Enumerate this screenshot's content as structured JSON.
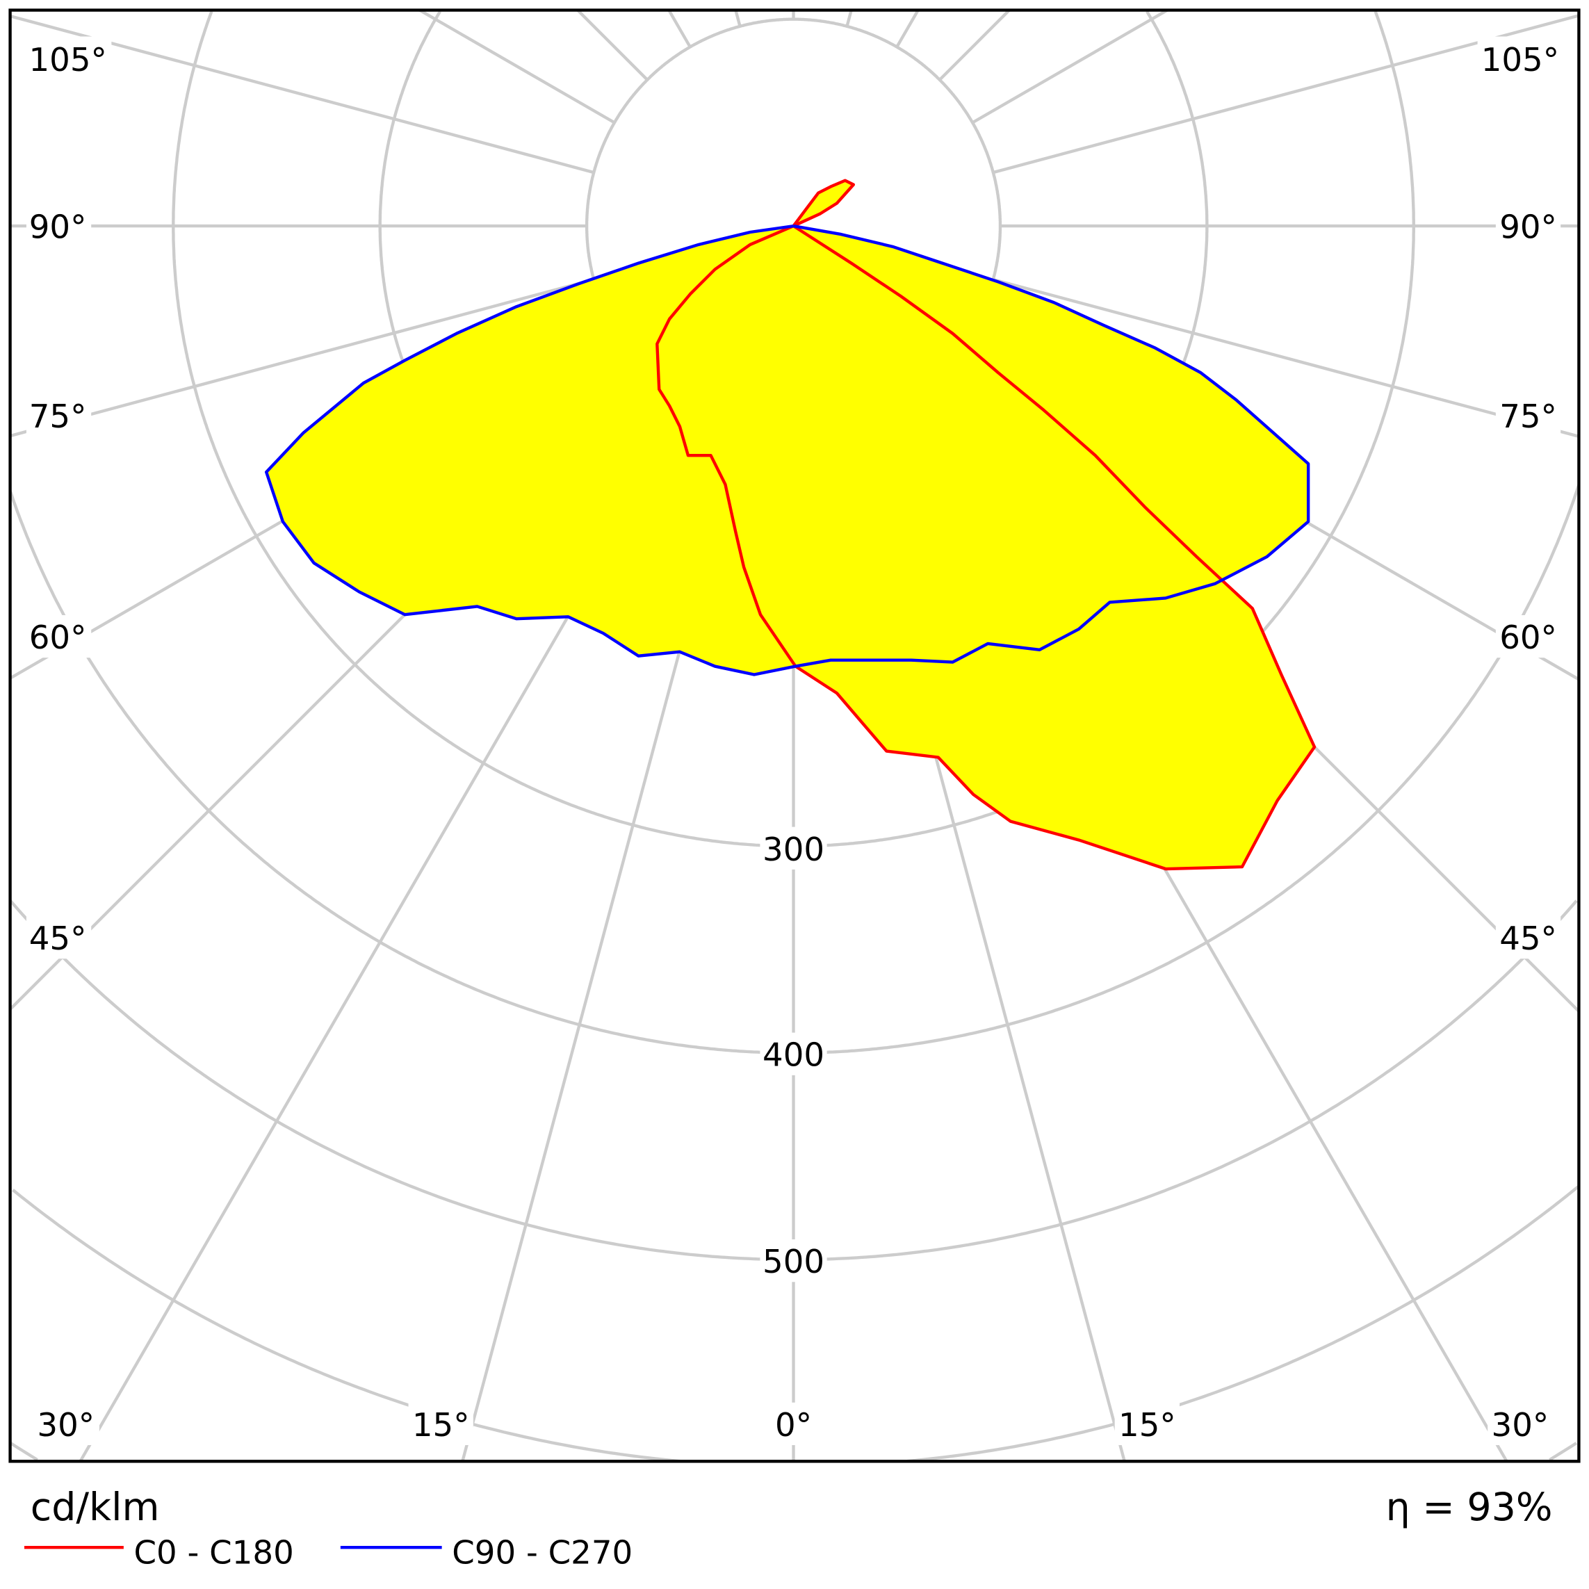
{
  "chart_data": {
    "type": "polar",
    "unit_label": "cd/klm",
    "efficiency_label": "η = 93%",
    "radial_ticks": [
      100,
      200,
      300,
      400,
      500,
      600,
      700,
      800
    ],
    "radial_tick_labels": [
      "300",
      "400",
      "500"
    ],
    "angle_step_deg": 15,
    "angle_labels": {
      "left_105": "105°",
      "right_105": "105°",
      "left_90": "90°",
      "right_90": "90°",
      "left_75": "75°",
      "right_75": "75°",
      "left_60": "60°",
      "right_60": "60°",
      "left_45": "45°",
      "right_45": "45°",
      "left_30": "30°",
      "right_30": "30°",
      "left_15": "15°",
      "right_15": "15°",
      "zero": "0°"
    },
    "grid": true,
    "fill_color": "#ffff00",
    "grid_color": "#cccccc",
    "point_format": "[horizontal, downward] intensity components in cd/klm",
    "series": [
      {
        "name": "C0 - C180",
        "color": "#ff0000",
        "points": [
          [
            0,
            0
          ],
          [
            28,
            18
          ],
          [
            52,
            34
          ],
          [
            77,
            52
          ],
          [
            99,
            71
          ],
          [
            121,
            89
          ],
          [
            146,
            111
          ],
          [
            170,
            136
          ],
          [
            195,
            160
          ],
          [
            222,
            185
          ],
          [
            236,
            217
          ],
          [
            252,
            252
          ],
          [
            234,
            278
          ],
          [
            217,
            310
          ],
          [
            180,
            311
          ],
          [
            138,
            297
          ],
          [
            105,
            288
          ],
          [
            87,
            275
          ],
          [
            70,
            257
          ],
          [
            45,
            254
          ],
          [
            33,
            240
          ],
          [
            21,
            226
          ],
          [
            1,
            213
          ],
          [
            -16,
            188
          ],
          [
            -24,
            165
          ],
          [
            -28,
            148
          ],
          [
            -33,
            125
          ],
          [
            -40,
            111
          ],
          [
            -51,
            111
          ],
          [
            -55,
            97
          ],
          [
            -60,
            87
          ],
          [
            -65,
            79
          ],
          [
            -66,
            57
          ],
          [
            -60,
            45
          ],
          [
            -50,
            33
          ],
          [
            -38,
            21
          ],
          [
            -21,
            9
          ],
          [
            0,
            0
          ],
          [
            13,
            -6
          ],
          [
            21,
            -11
          ],
          [
            29,
            -20
          ],
          [
            25,
            -22
          ],
          [
            18,
            -19
          ],
          [
            12,
            -16
          ],
          [
            6,
            -8
          ],
          [
            0,
            0
          ]
        ]
      },
      {
        "name": "C90 - C270",
        "color": "#0000ff",
        "points": [
          [
            0,
            0
          ],
          [
            23,
            4
          ],
          [
            48,
            10
          ],
          [
            72,
            18
          ],
          [
            99,
            27
          ],
          [
            126,
            37
          ],
          [
            150,
            48
          ],
          [
            175,
            59
          ],
          [
            197,
            71
          ],
          [
            214,
            84
          ],
          [
            231,
            99
          ],
          [
            249,
            115
          ],
          [
            249,
            131
          ],
          [
            249,
            143
          ],
          [
            229,
            160
          ],
          [
            204,
            173
          ],
          [
            180,
            180
          ],
          [
            153,
            182
          ],
          [
            138,
            195
          ],
          [
            119,
            205
          ],
          [
            94,
            202
          ],
          [
            77,
            211
          ],
          [
            57,
            210
          ],
          [
            38,
            210
          ],
          [
            18,
            210
          ],
          [
            1,
            213
          ],
          [
            -19,
            217
          ],
          [
            -38,
            213
          ],
          [
            -55,
            206
          ],
          [
            -75,
            208
          ],
          [
            -92,
            197
          ],
          [
            -109,
            189
          ],
          [
            -134,
            190
          ],
          [
            -153,
            184
          ],
          [
            -188,
            188
          ],
          [
            -210,
            177
          ],
          [
            -232,
            163
          ],
          [
            -247,
            143
          ],
          [
            -255,
            119
          ],
          [
            -237,
            100
          ],
          [
            -208,
            76
          ],
          [
            -188,
            65
          ],
          [
            -163,
            52
          ],
          [
            -134,
            39
          ],
          [
            -104,
            28
          ],
          [
            -75,
            18
          ],
          [
            -46,
            9
          ],
          [
            -21,
            3
          ],
          [
            0,
            0
          ]
        ]
      }
    ]
  }
}
